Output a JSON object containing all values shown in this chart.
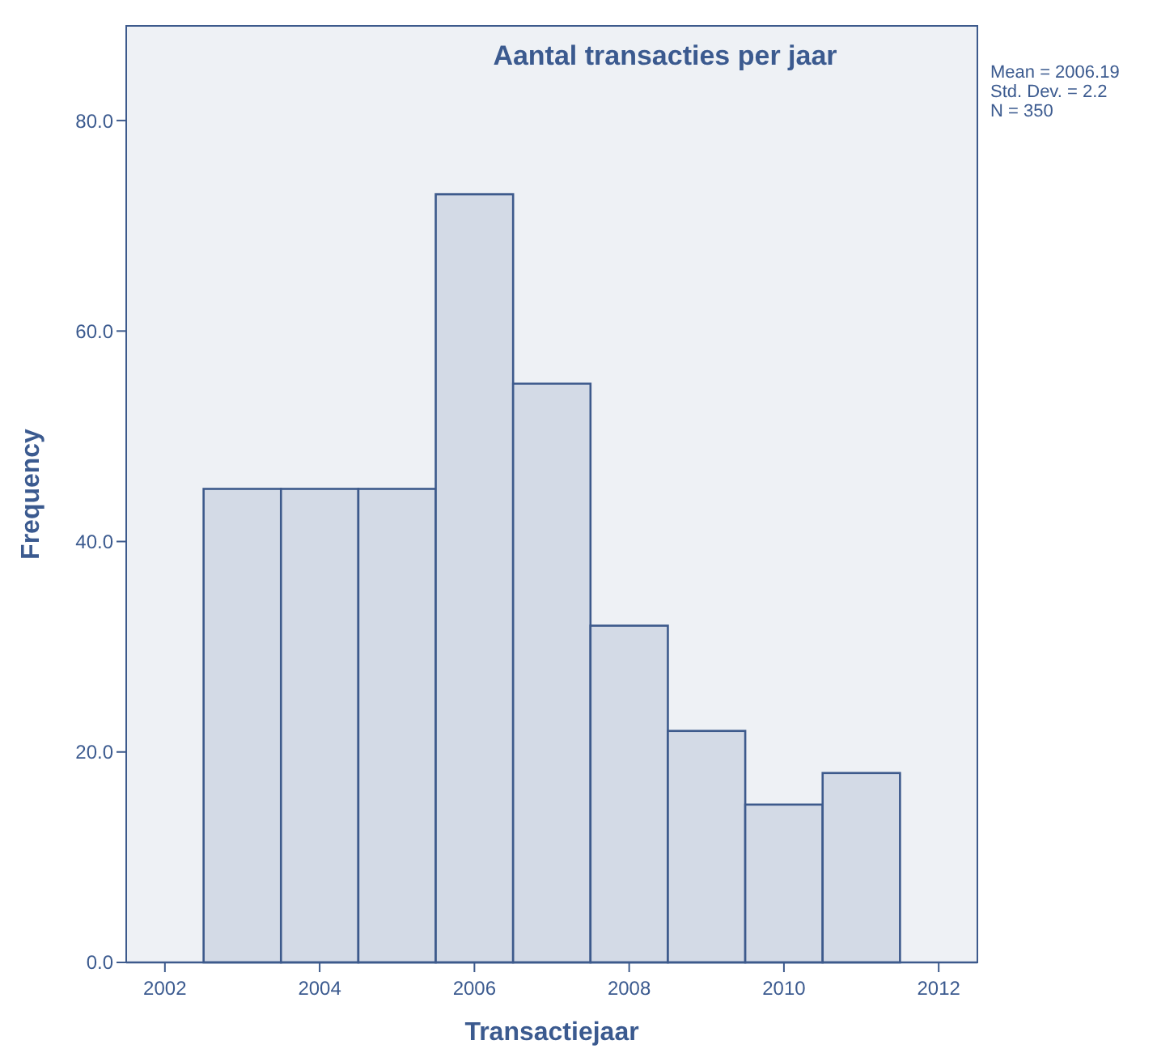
{
  "chart_data": {
    "type": "histogram",
    "title": "Aantal transacties per jaar",
    "xlabel": "Transactiejaar",
    "ylabel": "Frequency",
    "bins": [
      2002.5,
      2003.5,
      2004.5,
      2005.5,
      2006.5,
      2007.5,
      2008.5,
      2009.5,
      2010.5,
      2011.5
    ],
    "values": [
      45,
      45,
      45,
      73,
      55,
      32,
      22,
      15,
      18
    ],
    "color": "#d3dae6",
    "xlim": [
      2001.5,
      2012.5
    ],
    "xticks": [
      2002,
      2004,
      2006,
      2008,
      2010,
      2012
    ],
    "ylim": [
      0,
      89
    ],
    "yticks": [
      {
        "value": 0,
        "label": "0.0"
      },
      {
        "value": 20,
        "label": "20.0"
      },
      {
        "value": 40,
        "label": "40.0"
      },
      {
        "value": 60,
        "label": "60.0"
      },
      {
        "value": 80,
        "label": "80.0"
      }
    ],
    "grid": false,
    "annotations": [
      "Mean = 2006.19",
      "Std. Dev. = 2.2",
      "N = 350"
    ]
  }
}
